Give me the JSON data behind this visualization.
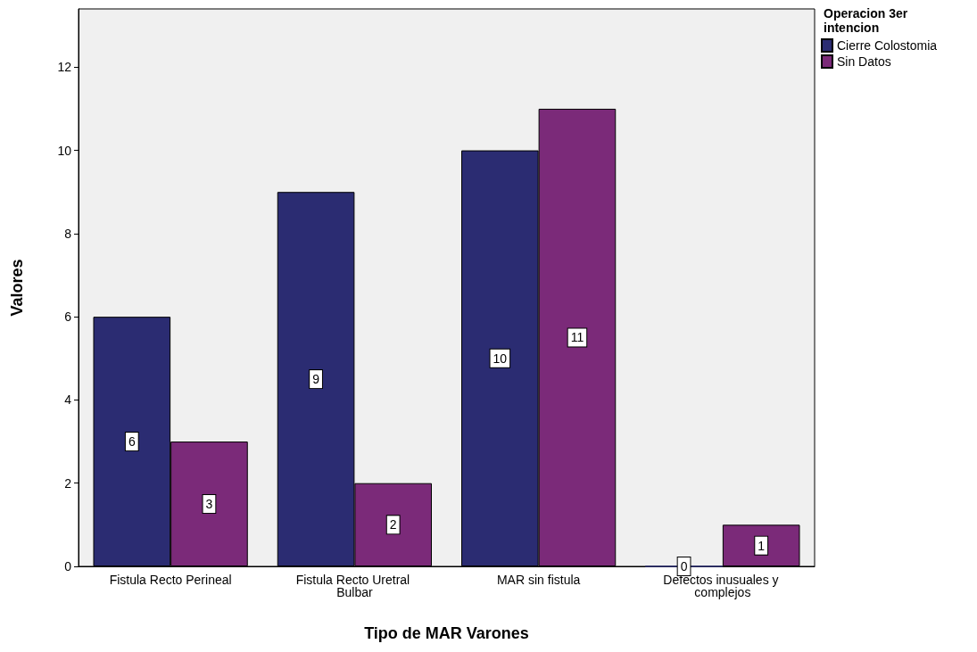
{
  "chart_data": {
    "type": "bar",
    "xlabel": "Tipo de MAR Varones",
    "ylabel": "Valores",
    "legend_title": "Operacion 3er intencion",
    "categories": [
      "Fistula Recto Perineal",
      "Fistula Recto Uretral Bulbar",
      "MAR sin fistula",
      "Defectos inusuales y complejos"
    ],
    "series": [
      {
        "name": "Cierre Colostomia",
        "color": "#2b2c72",
        "values": [
          6,
          9,
          10,
          0
        ]
      },
      {
        "name": "Sin Datos",
        "color": "#7b2a79",
        "values": [
          3,
          2,
          11,
          1
        ]
      }
    ],
    "ylim": [
      0,
      13.4
    ],
    "yticks": [
      0,
      2,
      4,
      6,
      8,
      10,
      12
    ],
    "grid": false,
    "legend": "top right",
    "data_labels": true
  }
}
